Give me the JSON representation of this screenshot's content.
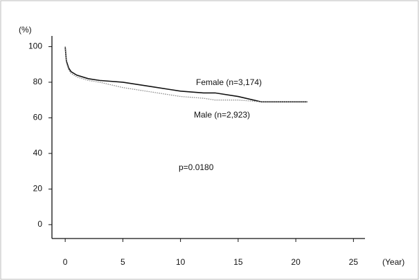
{
  "chart_data": {
    "type": "line",
    "y_label": "(%)",
    "x_label": "(Year)",
    "annotation": "p=0.0180",
    "x": [
      0,
      0.1,
      0.3,
      0.5,
      1,
      2,
      3,
      5,
      7,
      9,
      10,
      12,
      13,
      15,
      17,
      19,
      21
    ],
    "series": [
      {
        "name": "Female (n=3,174)",
        "color": "#111111",
        "style": "solid",
        "values": [
          100,
          92,
          88,
          86,
          84,
          82,
          81,
          80,
          78,
          76,
          75,
          74,
          74,
          72,
          69,
          69,
          69
        ]
      },
      {
        "name": "Male (n=2,923)",
        "color": "#888888",
        "style": "dotted",
        "values": [
          100,
          91,
          87,
          85,
          83,
          81,
          80,
          77,
          75,
          73,
          72,
          71,
          70,
          70,
          69,
          69,
          69
        ]
      }
    ],
    "xlim": [
      -1.15,
      26
    ],
    "ylim": [
      -7.8,
      106
    ],
    "xticks": [
      0,
      5,
      10,
      15,
      20,
      25
    ],
    "yticks": [
      0,
      20,
      40,
      60,
      80,
      100
    ],
    "grid": false
  }
}
